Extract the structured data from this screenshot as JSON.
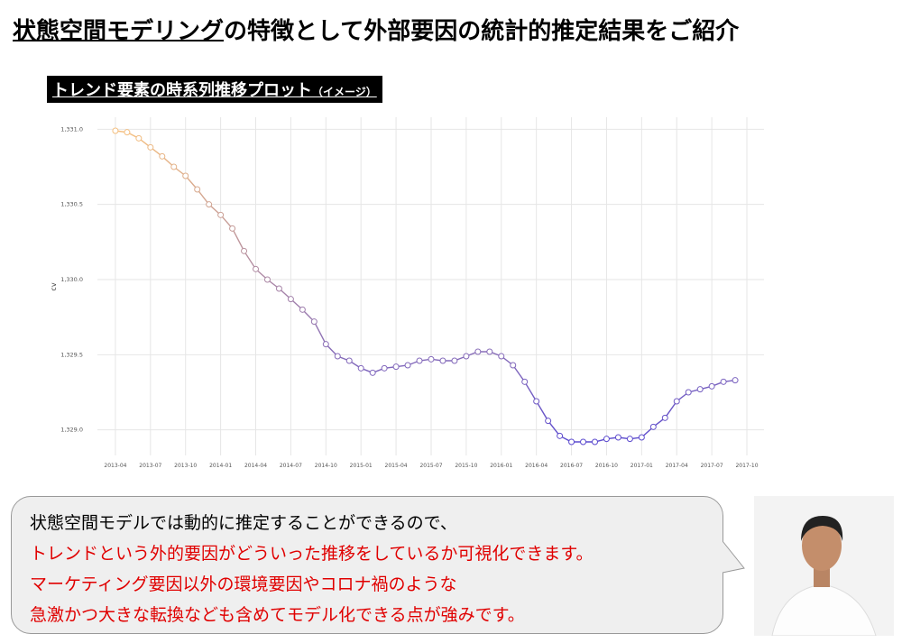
{
  "header": {
    "title_underlined": "状態空間モデリング",
    "title_rest": "の特徴として外部要因の統計的推定結果をご紹介"
  },
  "chart_data": {
    "type": "line",
    "title": "トレンド要素の時系列推移プロット",
    "title_note": "（イメージ）",
    "y_label": "cv",
    "x": [
      "2013-04",
      "2013-05",
      "2013-06",
      "2013-07",
      "2013-08",
      "2013-09",
      "2013-10",
      "2013-11",
      "2013-12",
      "2014-01",
      "2014-02",
      "2014-03",
      "2014-04",
      "2014-05",
      "2014-06",
      "2014-07",
      "2014-08",
      "2014-09",
      "2014-10",
      "2014-11",
      "2014-12",
      "2015-01",
      "2015-02",
      "2015-03",
      "2015-04",
      "2015-05",
      "2015-06",
      "2015-07",
      "2015-08",
      "2015-09",
      "2015-10",
      "2015-11",
      "2015-12",
      "2016-01",
      "2016-02",
      "2016-03",
      "2016-04",
      "2016-05",
      "2016-06",
      "2016-07",
      "2016-08",
      "2016-09",
      "2016-10",
      "2016-11",
      "2016-12",
      "2017-01",
      "2017-02",
      "2017-03",
      "2017-04",
      "2017-05",
      "2017-06",
      "2017-07",
      "2017-08",
      "2017-09"
    ],
    "values": [
      1330.99,
      1330.98,
      1330.94,
      1330.88,
      1330.82,
      1330.75,
      1330.69,
      1330.6,
      1330.5,
      1330.43,
      1330.34,
      1330.19,
      1330.07,
      1330.0,
      1329.94,
      1329.87,
      1329.8,
      1329.72,
      1329.57,
      1329.49,
      1329.46,
      1329.41,
      1329.38,
      1329.41,
      1329.42,
      1329.43,
      1329.46,
      1329.47,
      1329.46,
      1329.46,
      1329.49,
      1329.52,
      1329.52,
      1329.49,
      1329.43,
      1329.32,
      1329.19,
      1329.06,
      1328.96,
      1328.92,
      1328.92,
      1328.92,
      1328.94,
      1328.95,
      1328.94,
      1328.95,
      1329.02,
      1329.08,
      1329.19,
      1329.25,
      1329.27,
      1329.29,
      1329.32,
      1329.33
    ],
    "color_scale": [
      "#5546d2",
      "#fbc47c"
    ],
    "xlim": [
      "2013-02",
      "2017-11"
    ],
    "xticks": [
      "2013-04",
      "2013-07",
      "2013-10",
      "2014-01",
      "2014-04",
      "2014-07",
      "2014-10",
      "2015-01",
      "2015-04",
      "2015-07",
      "2015-10",
      "2016-01",
      "2016-04",
      "2016-07",
      "2016-10",
      "2017-01",
      "2017-04",
      "2017-07",
      "2017-10"
    ],
    "ylim": [
      1328.83,
      1331.08
    ],
    "yticks": [
      {
        "value": 1329.0,
        "label": "1,329.0"
      },
      {
        "value": 1329.5,
        "label": "1,329.5"
      },
      {
        "value": 1330.0,
        "label": "1,330.0"
      },
      {
        "value": 1330.5,
        "label": "1,330.5"
      },
      {
        "value": 1331.0,
        "label": "1,331.0"
      }
    ],
    "grid": true
  },
  "callout": {
    "lines": [
      "状態空間モデルでは動的に推定することができるので、",
      "トレンドという外的要因がどういった推移をしているか可視化できます。",
      "マーケティング要因以外の環境要因やコロナ禍のような",
      "急激かつ大きな転換なども含めてモデル化できる点が強みです。"
    ]
  }
}
